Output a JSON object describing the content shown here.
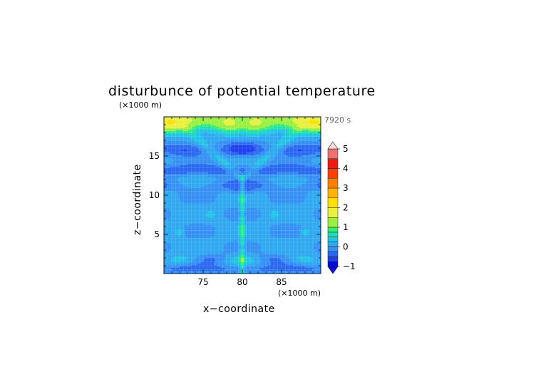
{
  "chart_data": {
    "type": "heatmap",
    "title": "disturbunce of potential temperature",
    "time_label": "7920 s",
    "xlabel": "x−coordinate",
    "ylabel": "z−coordinate",
    "x_unit": "(×1000 m)",
    "z_unit": "(×1000 m)",
    "xlim": [
      70,
      90
    ],
    "ylim": [
      0,
      20
    ],
    "x_ticks": [
      75,
      80,
      85
    ],
    "y_ticks": [
      5,
      10,
      15
    ],
    "colorbar": {
      "min": -1,
      "max": 5,
      "ticks": [
        -1,
        0,
        1,
        2,
        3,
        4,
        5
      ],
      "levels": [
        -1,
        -0.75,
        -0.5,
        -0.25,
        0,
        0.25,
        0.5,
        0.75,
        1,
        1.5,
        2,
        2.5,
        3,
        3.5,
        4,
        4.5,
        5
      ],
      "colors": [
        "#0a0ad8",
        "#1e3ef0",
        "#2a68f2",
        "#3490f4",
        "#2ea8f0",
        "#22c4e6",
        "#1adcb8",
        "#32ee80",
        "#9af040",
        "#e8f040",
        "#ffe000",
        "#ffb400",
        "#ff8000",
        "#ff4000",
        "#f01810",
        "#f07070",
        "#f8b0b0"
      ]
    },
    "grid": true
  }
}
